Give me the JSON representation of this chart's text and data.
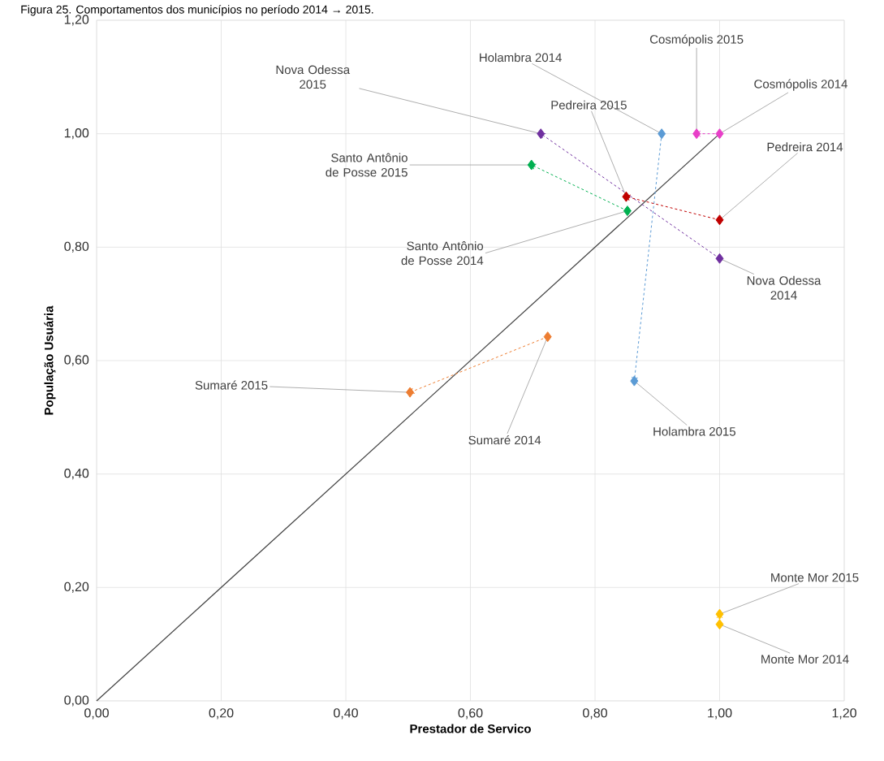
{
  "chart_data": {
    "type": "line",
    "title": "Figura 25. Comportamentos dos municípios no período 2014 → 2015.",
    "xlabel": "Prestador de Servico",
    "ylabel": "População Usuária",
    "xlim": [
      0,
      1.2
    ],
    "ylim": [
      0,
      1.2
    ],
    "xticks": [
      {
        "value": 0,
        "label": "0,00"
      },
      {
        "value": 0.2,
        "label": "0,20"
      },
      {
        "value": 0.4,
        "label": "0,40"
      },
      {
        "value": 0.6,
        "label": "0,60"
      },
      {
        "value": 0.8,
        "label": "0,80"
      },
      {
        "value": 1.0,
        "label": "1,00"
      },
      {
        "value": 1.2,
        "label": "1,20"
      }
    ],
    "yticks": [
      {
        "value": 0,
        "label": "0,00"
      },
      {
        "value": 0.2,
        "label": "0,20"
      },
      {
        "value": 0.4,
        "label": "0,40"
      },
      {
        "value": 0.6,
        "label": "0,60"
      },
      {
        "value": 0.8,
        "label": "0,80"
      },
      {
        "value": 1.0,
        "label": "1,00"
      },
      {
        "value": 1.2,
        "label": "1,20"
      }
    ],
    "grid": true,
    "marker": "diamond",
    "series": [
      {
        "color": "#404040",
        "x": [
          0,
          1.0
        ],
        "values": [
          0,
          1.0
        ],
        "marker": "none",
        "line_style": "solid"
      },
      {
        "color": "#e83fc8",
        "x": [
          1.0,
          0.963
        ],
        "values": [
          1.0,
          1.0
        ],
        "line_style": "dashed"
      },
      {
        "color": "#5b9bd5",
        "x": [
          0.907,
          0.863
        ],
        "values": [
          1.0,
          0.564
        ],
        "line_style": "dashed"
      },
      {
        "color": "#7030a0",
        "x": [
          1.0,
          0.713
        ],
        "values": [
          0.78,
          1.0
        ],
        "line_style": "dashed"
      },
      {
        "color": "#c00000",
        "x": [
          1.0,
          0.85
        ],
        "values": [
          0.848,
          0.889
        ],
        "line_style": "dashed"
      },
      {
        "color": "#00b050",
        "x": [
          0.852,
          0.698
        ],
        "values": [
          0.864,
          0.945
        ],
        "line_style": "dashed"
      },
      {
        "color": "#ed7d31",
        "x": [
          0.724,
          0.503
        ],
        "values": [
          0.642,
          0.544
        ],
        "line_style": "dashed"
      },
      {
        "color": "#ffc000",
        "x": [
          1.0,
          1.0
        ],
        "values": [
          0.135,
          0.153
        ],
        "line_style": "dashed"
      }
    ],
    "annotations": [
      {
        "text": "Cosmópolis 2014",
        "x": 1.0,
        "y": 1.0
      },
      {
        "text": "Cosmópolis 2015",
        "x": 0.963,
        "y": 1.0
      },
      {
        "text": "Holambra 2014",
        "x": 0.907,
        "y": 1.0
      },
      {
        "text": "Holambra 2015",
        "x": 0.863,
        "y": 0.564
      },
      {
        "text": "Nova Odessa 2014",
        "x": 1.0,
        "y": 0.78
      },
      {
        "text": "Nova Odessa 2015",
        "x": 0.713,
        "y": 1.0
      },
      {
        "text": "Pedreira 2014",
        "x": 1.0,
        "y": 0.848
      },
      {
        "text": "Pedreira 2015",
        "x": 0.85,
        "y": 0.889
      },
      {
        "text": "Santo Antônio de Posse 2014",
        "x": 0.852,
        "y": 0.864
      },
      {
        "text": "Santo Antônio de Posse 2015",
        "x": 0.698,
        "y": 0.945
      },
      {
        "text": "Sumaré 2014",
        "x": 0.724,
        "y": 0.642
      },
      {
        "text": "Sumaré 2015",
        "x": 0.503,
        "y": 0.544
      },
      {
        "text": "Monte Mor 2014",
        "x": 1.0,
        "y": 0.135
      },
      {
        "text": "Monte Mor 2015",
        "x": 1.0,
        "y": 0.153
      }
    ]
  }
}
